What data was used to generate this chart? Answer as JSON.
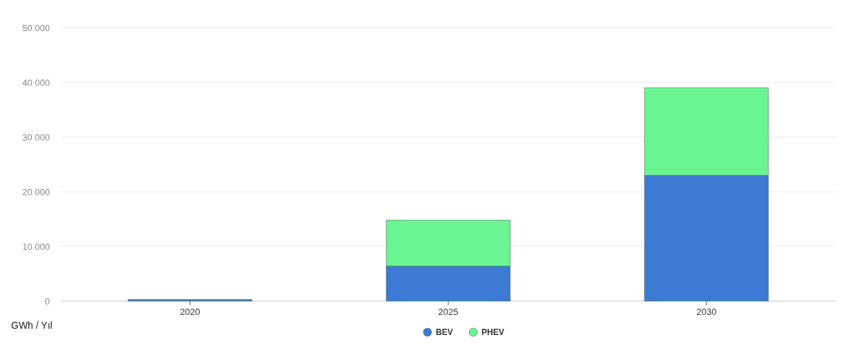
{
  "chart_data": {
    "type": "bar",
    "stacked": true,
    "ylabel": "GWh / Yıl",
    "categories": [
      "2020",
      "2025",
      "2030"
    ],
    "series": [
      {
        "name": "BEV",
        "color": "#3d7ad4",
        "values": [
          300,
          6400,
          23000
        ]
      },
      {
        "name": "PHEV",
        "color": "#6af593",
        "values": [
          null,
          8400,
          16000
        ]
      }
    ],
    "ylim": [
      0,
      50000
    ],
    "yticks": [
      {
        "value": 0,
        "label": "0"
      },
      {
        "value": 10000,
        "label": "10 000"
      },
      {
        "value": 20000,
        "label": "20 000"
      },
      {
        "value": 30000,
        "label": "30 000"
      },
      {
        "value": 40000,
        "label": "40 000"
      },
      {
        "value": 50000,
        "label": "50 000"
      }
    ],
    "grid": "y",
    "legend": "bottom"
  }
}
